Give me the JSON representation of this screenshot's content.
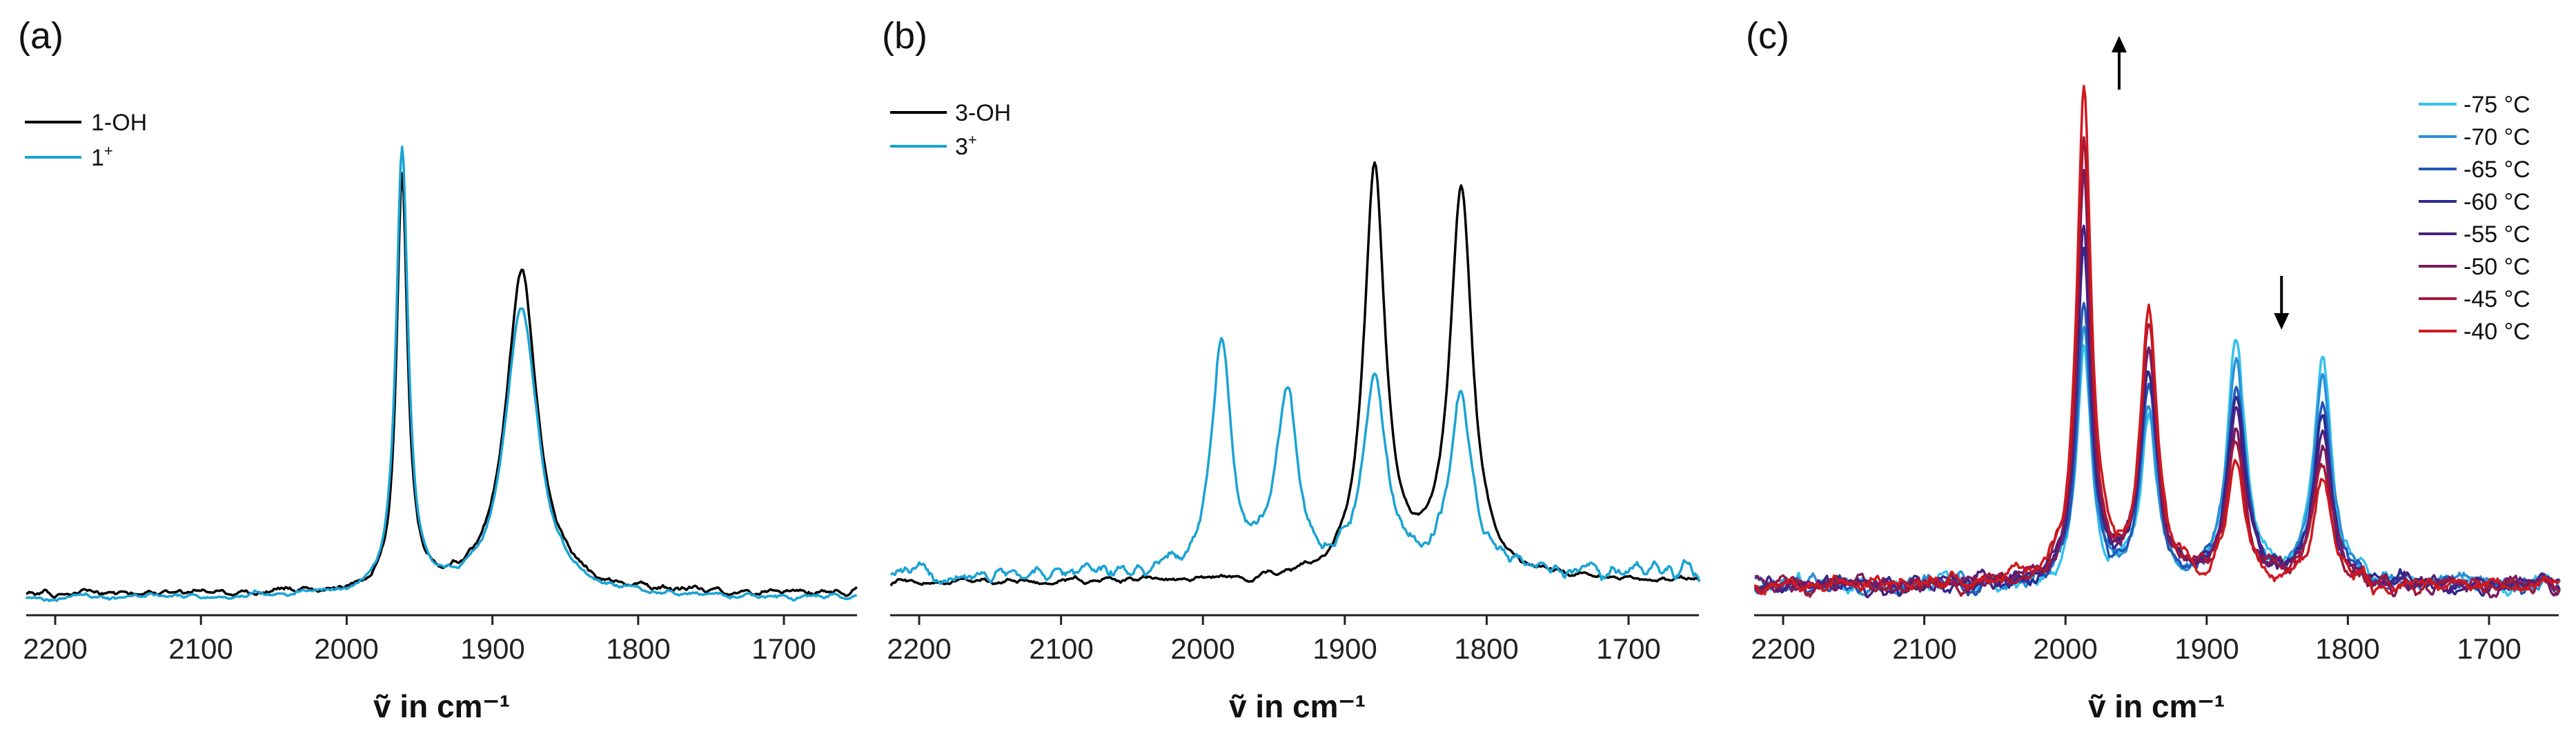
{
  "colors": {
    "black": "#000000",
    "cyan": "#1aa3d4"
  },
  "chart_data": [
    {
      "type": "line",
      "panel_label": "(a)",
      "xlabel": "ṽ in cm⁻¹",
      "xlim": [
        2220,
        1650
      ],
      "xticks": [
        2200,
        2100,
        2000,
        1900,
        1800,
        1700
      ],
      "legend": {
        "position": "top-left",
        "entries": [
          {
            "label": "1-OH",
            "sup": "",
            "color": "#000000"
          },
          {
            "label": "1",
            "sup": "+",
            "color": "#1aa3d4"
          }
        ]
      },
      "series": [
        {
          "name": "1-OH",
          "color": "#000000",
          "baseline": 0.02,
          "noise": 0.012,
          "peaks": [
            {
              "x": 1962,
              "h": 1.07,
              "w": 4.5
            },
            {
              "x": 1880,
              "h": 0.83,
              "w": 13
            }
          ]
        },
        {
          "name": "1+",
          "color": "#1aa3d4",
          "baseline": 0.01,
          "noise": 0.01,
          "peaks": [
            {
              "x": 1962,
              "h": 1.15,
              "w": 5
            },
            {
              "x": 1880,
              "h": 0.75,
              "w": 13.5
            }
          ]
        }
      ]
    },
    {
      "type": "line",
      "panel_label": "(b)",
      "xlabel": "ṽ in cm⁻¹",
      "xlim": [
        2220,
        1650
      ],
      "xticks": [
        2200,
        2100,
        2000,
        1900,
        1800,
        1700
      ],
      "legend": {
        "position": "top-left",
        "entries": [
          {
            "label": "3-OH",
            "sup": "",
            "color": "#000000"
          },
          {
            "label": "3",
            "sup": "+",
            "color": "#1aa3d4"
          }
        ]
      },
      "series": [
        {
          "name": "3-OH",
          "color": "#000000",
          "baseline": 0.02,
          "noise": 0.01,
          "peaks": [
            {
              "x": 1879,
              "h": 1.0,
              "w": 9
            },
            {
              "x": 1818,
              "h": 0.95,
              "w": 9.5
            }
          ]
        },
        {
          "name": "3+",
          "color": "#1aa3d4",
          "baseline": 0.04,
          "noise": 0.025,
          "peaks": [
            {
              "x": 1987,
              "h": 0.56,
              "w": 8
            },
            {
              "x": 1941,
              "h": 0.42,
              "w": 9
            },
            {
              "x": 1879,
              "h": 0.48,
              "w": 9
            },
            {
              "x": 1818,
              "h": 0.43,
              "w": 9
            }
          ]
        }
      ]
    },
    {
      "type": "line",
      "panel_label": "(c)",
      "xlabel": "ṽ in cm⁻¹",
      "xlim": [
        2220,
        1650
      ],
      "xticks": [
        2200,
        2100,
        2000,
        1900,
        1800,
        1700
      ],
      "arrows": [
        {
          "x": 1962,
          "direction": "up"
        },
        {
          "x": 1847,
          "direction": "down"
        }
      ],
      "legend": {
        "position": "top-right",
        "entries": [
          {
            "label": "-75 °C",
            "color": "#33c1ee"
          },
          {
            "label": "-70 °C",
            "color": "#2a8fd6"
          },
          {
            "label": "-65 °C",
            "color": "#2356b3"
          },
          {
            "label": "-60 °C",
            "color": "#2b2a8c"
          },
          {
            "label": "-55 °C",
            "color": "#4a1f80"
          },
          {
            "label": "-50 °C",
            "color": "#7a1a5e"
          },
          {
            "label": "-45 °C",
            "color": "#a31838"
          },
          {
            "label": "-40 °C",
            "color": "#d0181e"
          }
        ]
      },
      "series": [
        {
          "name": "-75 °C",
          "color": "#33c1ee",
          "peaks": [
            {
              "x": 1987,
              "h": 0.64,
              "w": 6
            },
            {
              "x": 1941,
              "h": 0.43,
              "w": 7
            },
            {
              "x": 1879,
              "h": 0.66,
              "w": 7.5
            },
            {
              "x": 1818,
              "h": 0.62,
              "w": 7.5
            }
          ]
        },
        {
          "name": "-70 °C",
          "color": "#2a8fd6",
          "peaks": [
            {
              "x": 1987,
              "h": 0.68,
              "w": 6
            },
            {
              "x": 1941,
              "h": 0.47,
              "w": 7
            },
            {
              "x": 1879,
              "h": 0.6,
              "w": 7.5
            },
            {
              "x": 1818,
              "h": 0.56,
              "w": 7.5
            }
          ]
        },
        {
          "name": "-65 °C",
          "color": "#2356b3",
          "peaks": [
            {
              "x": 1987,
              "h": 0.75,
              "w": 6
            },
            {
              "x": 1941,
              "h": 0.52,
              "w": 7
            },
            {
              "x": 1879,
              "h": 0.54,
              "w": 7.5
            },
            {
              "x": 1818,
              "h": 0.5,
              "w": 7.5
            }
          ]
        },
        {
          "name": "-60 °C",
          "color": "#2b2a8c",
          "peaks": [
            {
              "x": 1987,
              "h": 0.92,
              "w": 6
            },
            {
              "x": 1941,
              "h": 0.57,
              "w": 7
            },
            {
              "x": 1879,
              "h": 0.5,
              "w": 7.5
            },
            {
              "x": 1818,
              "h": 0.45,
              "w": 7.5
            }
          ]
        },
        {
          "name": "-55 °C",
          "color": "#4a1f80",
          "peaks": [
            {
              "x": 1987,
              "h": 0.97,
              "w": 6
            },
            {
              "x": 1941,
              "h": 0.61,
              "w": 7
            },
            {
              "x": 1879,
              "h": 0.46,
              "w": 7.5
            },
            {
              "x": 1818,
              "h": 0.41,
              "w": 7.5
            }
          ]
        },
        {
          "name": "-50 °C",
          "color": "#7a1a5e",
          "peaks": [
            {
              "x": 1987,
              "h": 1.08,
              "w": 6
            },
            {
              "x": 1941,
              "h": 0.64,
              "w": 7
            },
            {
              "x": 1879,
              "h": 0.42,
              "w": 7.5
            },
            {
              "x": 1818,
              "h": 0.37,
              "w": 7.5
            }
          ]
        },
        {
          "name": "-45 °C",
          "color": "#a31838",
          "peaks": [
            {
              "x": 1987,
              "h": 1.19,
              "w": 6
            },
            {
              "x": 1941,
              "h": 0.68,
              "w": 7
            },
            {
              "x": 1879,
              "h": 0.37,
              "w": 7.5
            },
            {
              "x": 1818,
              "h": 0.33,
              "w": 7.5
            }
          ]
        },
        {
          "name": "-40 °C",
          "color": "#d0181e",
          "peaks": [
            {
              "x": 1987,
              "h": 1.35,
              "w": 6
            },
            {
              "x": 1941,
              "h": 0.72,
              "w": 7
            },
            {
              "x": 1879,
              "h": 0.32,
              "w": 7.5
            },
            {
              "x": 1818,
              "h": 0.28,
              "w": 7.5
            }
          ]
        }
      ]
    }
  ]
}
